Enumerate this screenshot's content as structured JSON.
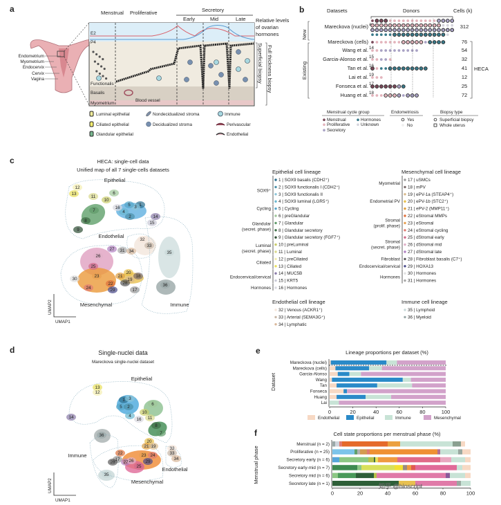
{
  "panel_a": {
    "label": "a",
    "phases": {
      "menstrual": "Menstrual",
      "proliferative": "Proliferative",
      "secretory": "Secretory",
      "early": "Early",
      "mid": "Mid",
      "late": "Late"
    },
    "hormones": {
      "e2": "E2",
      "p4": "P4",
      "caption": [
        "Relative levels",
        "of ovarian",
        "hormones"
      ],
      "e2_color": "#d9606a",
      "p4_color": "#5a9ad0"
    },
    "anatomy": [
      "Endometrium",
      "Myometrium",
      "Endocervix",
      "Cervix",
      "Vagina"
    ],
    "layers": [
      "Functionalis",
      "Basalis",
      "Myometrium"
    ],
    "blood_vessel": "Blood vessel",
    "biopsy": {
      "superficial": "Superficial biopsy",
      "full": "Full thickness biopsy"
    },
    "legend": [
      {
        "label": "Luminal epithelial",
        "icon": "luminal-cell-icon",
        "color": "#f0ec9a"
      },
      {
        "label": "Ciliated epithelial",
        "icon": "ciliated-cell-icon",
        "color": "#f5ee70"
      },
      {
        "label": "Glandular epithelial",
        "icon": "glandular-cell-icon",
        "color": "#7ab890"
      },
      {
        "label": "Nondecidualized stroma",
        "icon": "spindle-cell-icon",
        "color": "#8090a8"
      },
      {
        "label": "Decidualized stroma",
        "icon": "round-cell-icon",
        "color": "#7890b0"
      },
      {
        "label": "Immune",
        "icon": "immune-cell-icon",
        "color": "#a8d8e0"
      },
      {
        "label": "Perivascular",
        "icon": "perivascular-cell-icon",
        "color": "#a05060"
      },
      {
        "label": "Endothelial",
        "icon": "endothelial-cell-icon",
        "color": "#e8c0c8"
      }
    ]
  },
  "panel_b": {
    "label": "b",
    "headers": {
      "datasets": "Datasets",
      "donors": "Donors",
      "cells": "Cells (k)"
    },
    "groups": {
      "new": "New",
      "existing": "Existing"
    },
    "heca": "HECA",
    "datasets": [
      {
        "name": "Mareckova (nuclei)",
        "ref": "a",
        "cells": "312",
        "dots": [
          "mMMMpppppppppppSSSS",
          "PPPPPPPPPPPPPPPPuuu",
          "SSSSSSSSSSSSSSSSSSS",
          "hhhhhHHHHHHHHHHHHu"
        ]
      },
      {
        "name": "Mareckova (cells)",
        "ref": "",
        "cells": "76",
        "dots": [
          "mppppppPPPPPsHHHH"
        ]
      },
      {
        "name": "Wang et al.",
        "ref": "14",
        "cells": "54",
        "dots": [
          "ppsssssssss"
        ]
      },
      {
        "name": "Garcia-Alonso et al.",
        "ref": "15",
        "cells": "32",
        "dots": [
          "ppssp"
        ]
      },
      {
        "name": "Tan et al.",
        "ref": "16",
        "cells": "41",
        "dots": [
          "MphhHHHHHHHHH"
        ]
      },
      {
        "name": "Lai et al.",
        "ref": "19",
        "cells": "12",
        "dots": [
          "ppp"
        ]
      },
      {
        "name": "Fonseca et al.",
        "ref": "17",
        "cells": "25",
        "dots": [
          "MMMMMMSH"
        ]
      },
      {
        "name": "Huang et al.",
        "ref": "18",
        "cells": "72",
        "dots": [
          "pppPPPSsSSS"
        ]
      }
    ],
    "colors": {
      "m": "#7a4a5a",
      "p": "#e3b4bc",
      "s": "#a9a2c4",
      "h": "#3a7a8a",
      "u": "#d4d4dc"
    },
    "legend": {
      "cycle_title": "Menstrual cycle group",
      "cycle": [
        {
          "label": "Menstrual",
          "key": "m"
        },
        {
          "label": "Proliferative",
          "key": "p"
        },
        {
          "label": "Secretory",
          "key": "s"
        },
        {
          "label": "Hormones",
          "key": "h"
        },
        {
          "label": "Unknown",
          "key": "u"
        }
      ],
      "endo_title": "Endometriosis",
      "endo": [
        "Yes",
        "No"
      ],
      "biopsy_title": "Biopsy type",
      "biopsy": [
        "Superficial biopsy",
        "Whole uterus"
      ]
    }
  },
  "panel_c": {
    "label": "c",
    "title": "HECA: single-cell data",
    "subtitle": "Unified map of all 7 single-cells datasets",
    "lineages": {
      "epithelial": "Epithelial",
      "endothelial": "Endothelial",
      "mesenchymal": "Mesenchymal",
      "immune": "Immune"
    },
    "lineage_colors": {
      "epithelial": "#3aa0d8",
      "endothelial": "#dcae88",
      "mesenchymal": "#cf98c8",
      "immune": "#9a9a9a"
    },
    "axes": {
      "x": "UMAP1",
      "y": "UMAP2"
    },
    "cluster_labels": [
      "1",
      "2",
      "3",
      "4",
      "5",
      "6",
      "7",
      "8",
      "9",
      "10",
      "11",
      "12",
      "13",
      "14",
      "15",
      "16",
      "17",
      "18",
      "19",
      "20",
      "21",
      "22",
      "23",
      "24",
      "25",
      "26",
      "27",
      "28",
      "29",
      "30",
      "31",
      "32",
      "33",
      "34",
      "35",
      "36"
    ],
    "legend": {
      "epithelial": {
        "title": "Epithelial cell lineage",
        "groups": [
          {
            "label": [
              "SOX9⁺"
            ],
            "items": [
              {
                "id": "1",
                "name": "SOX9 basalis (CDH2⁺)",
                "color": "#2b6f8f"
              },
              {
                "id": "2",
                "name": "SOX9 functionalis I (CDH2⁺)",
                "color": "#4a90a8"
              },
              {
                "id": "3",
                "name": "SOX9 functionalis II",
                "color": "#8cc5d8"
              },
              {
                "id": "4",
                "name": "SOX9 luminal (LGR5⁺)",
                "color": "#6ab8d0"
              }
            ]
          },
          {
            "label": [
              "Cycling"
            ],
            "items": [
              {
                "id": "5",
                "name": "Cycling",
                "color": "#56a6c9"
              }
            ]
          },
          {
            "label": [
              "Glandular",
              "(secret. phase)"
            ],
            "items": [
              {
                "id": "6",
                "name": "preGlandular",
                "color": "#9fc79a"
              },
              {
                "id": "7",
                "name": "Glandular",
                "color": "#5f9a6a"
              },
              {
                "id": "8",
                "name": "Glandular secretory",
                "color": "#3d6e45"
              },
              {
                "id": "9",
                "name": "Glandular secretory (FGF7⁺)",
                "color": "#2e4f34"
              }
            ]
          },
          {
            "label": [
              "Luminal",
              "(secret. phase)"
            ],
            "items": [
              {
                "id": "10",
                "name": "preLuminal",
                "color": "#c9cc6a"
              },
              {
                "id": "11",
                "name": "Luminal",
                "color": "#d9d98c"
              }
            ]
          },
          {
            "label": [
              "Ciliated"
            ],
            "items": [
              {
                "id": "12",
                "name": "preCiliated",
                "color": "#f3eeb0"
              },
              {
                "id": "13",
                "name": "Ciliated",
                "color": "#e8df5a"
              }
            ]
          },
          {
            "label": [
              "Endocervical/cervical"
            ],
            "items": [
              {
                "id": "14",
                "name": "MUC5B",
                "color": "#8a7aa8"
              },
              {
                "id": "15",
                "name": "KRT5",
                "color": "#c9c9d6"
              }
            ]
          },
          {
            "label": [
              "Hormones"
            ],
            "items": [
              {
                "id": "16",
                "name": "Hormones",
                "color": "#d8d8e0"
              }
            ]
          }
        ]
      },
      "mesenchymal": {
        "title": "Mesenchymal cell lineage",
        "groups": [
          {
            "label": [
              "Myometrial"
            ],
            "items": [
              {
                "id": "17",
                "name": "uSMCs",
                "color": "#9a9a9a"
              },
              {
                "id": "18",
                "name": "mPV",
                "color": "#7a6a6a"
              }
            ]
          },
          {
            "label": [
              "Endometrial PV"
            ],
            "items": [
              {
                "id": "19",
                "name": "ePV-1a (STEAP4⁺)",
                "color": "#d9b98a"
              },
              {
                "id": "20",
                "name": "ePV-1b (STC2⁺)",
                "color": "#e8c04a"
              },
              {
                "id": "21",
                "name": "ePV-2 (MMP11⁺)",
                "color": "#e0a040"
              }
            ]
          },
          {
            "label": [
              "Stromal",
              "(prolif. phase)"
            ],
            "items": [
              {
                "id": "22",
                "name": "eStromal MMPs",
                "color": "#e0703a"
              },
              {
                "id": "23",
                "name": "eStromal",
                "color": "#e8a050"
              },
              {
                "id": "24",
                "name": "eStromal cycling",
                "color": "#e07a70"
              }
            ]
          },
          {
            "label": [
              "Stromal",
              "(secret. phase)"
            ],
            "items": [
              {
                "id": "25",
                "name": "dStromal early",
                "color": "#d06a8a"
              },
              {
                "id": "26",
                "name": "dStromal mid",
                "color": "#e0b0c8"
              },
              {
                "id": "27",
                "name": "dStromal late",
                "color": "#b080c0"
              }
            ]
          },
          {
            "label": [
              "Fibroblast"
            ],
            "items": [
              {
                "id": "28",
                "name": "Fibroblast basalis (C7⁺)",
                "color": "#5a5a5a"
              }
            ]
          },
          {
            "label": [
              "Endocervical/cervical"
            ],
            "items": [
              {
                "id": "29",
                "name": "HOXA13",
                "color": "#4a4a8a"
              }
            ]
          },
          {
            "label": [
              "Hormones"
            ],
            "items": [
              {
                "id": "30",
                "name": "Hormones",
                "color": "#e0e0e0"
              },
              {
                "id": "31",
                "name": "Hormones",
                "color": "#a8a8a8"
              }
            ]
          }
        ]
      },
      "endothelial": {
        "title": "Endothelial cell lineage",
        "groups": [
          {
            "label": [],
            "items": [
              {
                "id": "32",
                "name": "Venous (ACKR1⁺)",
                "color": "#f5e6da"
              },
              {
                "id": "33",
                "name": "Arterial (SEMA3G⁺)",
                "color": "#c8b8a8"
              },
              {
                "id": "34",
                "name": "Lymphatic",
                "color": "#d9b89a"
              }
            ]
          }
        ]
      },
      "immune": {
        "title": "Immune cell lineage",
        "groups": [
          {
            "label": [],
            "items": [
              {
                "id": "35",
                "name": "Lymphoid",
                "color": "#c8d8d8"
              },
              {
                "id": "36",
                "name": "Myeloid",
                "color": "#9aa8a8"
              }
            ]
          }
        ]
      }
    }
  },
  "panel_d": {
    "label": "d",
    "title": "Single-nuclei data",
    "subtitle": "Mareckova single-nuclei dataset",
    "lineages": {
      "epithelial": "Epithelial",
      "endothelial": "Endothelial",
      "mesenchymal": "Mesenchymal",
      "immune": "Immune"
    },
    "axes": {
      "x": "UMAP1",
      "y": "UMAP2"
    },
    "cluster_labels": [
      "13",
      "12",
      "14",
      "1",
      "3",
      "5",
      "2",
      "6",
      "10",
      "4",
      "11",
      "16",
      "8",
      "7",
      "36",
      "20",
      "21",
      "19",
      "32",
      "33",
      "34",
      "22",
      "23",
      "24",
      "17",
      "28",
      "27",
      "26",
      "29",
      "25",
      "35"
    ]
  },
  "chart_data": [
    {
      "panel": "e",
      "type": "bar",
      "orientation": "horizontal",
      "stacked": true,
      "title": "Lineage proportions per dataset (%)",
      "xlabel": "",
      "ylabel": "Dataset",
      "xlim": [
        0,
        100
      ],
      "xticks": [
        "0",
        "20",
        "40",
        "60",
        "80",
        "100"
      ],
      "categories": [
        "Mareckova (nuclei)",
        "Mareckova (cells)",
        "Garcia-Alonso",
        "Wang",
        "Tan",
        "Fonseca",
        "Huang",
        "Lai"
      ],
      "series": [
        {
          "name": "Endothelial",
          "color": "#f7d9c4",
          "values": [
            1,
            5,
            7,
            2,
            6,
            12,
            6,
            0
          ]
        },
        {
          "name": "Epithelial",
          "color": "#2a8ac8",
          "values": [
            48,
            29,
            10,
            61,
            35,
            3,
            25,
            0
          ]
        },
        {
          "name": "Immune",
          "color": "#c8e3d6",
          "values": [
            9,
            11,
            10,
            7,
            30,
            0,
            22,
            8
          ]
        },
        {
          "name": "Mesenchymal",
          "color": "#d2a2ca",
          "values": [
            42,
            55,
            73,
            30,
            29,
            85,
            47,
            92
          ]
        }
      ],
      "legend": "bottom"
    },
    {
      "panel": "f",
      "type": "bar",
      "orientation": "horizontal",
      "stacked": true,
      "title": "Cell state proportions per menstrual phase (%)",
      "xlabel": "",
      "ylabel": "Menstrual phase",
      "xlim": [
        0,
        100
      ],
      "xticks": [
        "0",
        "20",
        "40",
        "60",
        "80",
        "100"
      ],
      "categories": [
        "Menstrual (n = 2)",
        "Proliferative (n = 25)",
        "Secretory early (n = 6)",
        "Secretory early-mid (n = 7)",
        "Secretory mid (n = 6)",
        "Secretory late (n = 1)"
      ],
      "rows": [
        [
          [
            2,
            "#9aa8a8"
          ],
          [
            3,
            "#d0d4dc"
          ],
          [
            2,
            "#e07a70"
          ],
          [
            33,
            "#e56a2a"
          ],
          [
            9,
            "#eba040"
          ],
          [
            38,
            "#c8e3d6"
          ],
          [
            6,
            "#8aa090"
          ],
          [
            3,
            "#f7d9c4"
          ]
        ],
        [
          [
            16,
            "#7cc4ea"
          ],
          [
            2,
            "#5fa06a"
          ],
          [
            2,
            "#b0b0b0"
          ],
          [
            5,
            "#d49a50"
          ],
          [
            2,
            "#e07a70"
          ],
          [
            49,
            "#ef9033"
          ],
          [
            2,
            "#b07090"
          ],
          [
            13,
            "#c8e3d6"
          ],
          [
            3,
            "#9aa8a0"
          ],
          [
            6,
            "#f7d9c4"
          ]
        ],
        [
          [
            5,
            "#56a6d9"
          ],
          [
            21,
            "#8cc784"
          ],
          [
            4,
            "#b8c04a"
          ],
          [
            1,
            "#3d6e45"
          ],
          [
            2,
            "#e8df5a"
          ],
          [
            14,
            "#ef9a40"
          ],
          [
            31,
            "#e06a88"
          ],
          [
            8,
            "#e8a8c0"
          ],
          [
            10,
            "#c8e3d6"
          ],
          [
            4,
            "#f7d9c4"
          ]
        ],
        [
          [
            18,
            "#3d8a50"
          ],
          [
            3,
            "#8cc784"
          ],
          [
            24,
            "#d8e05a"
          ],
          [
            6,
            "#f3e030"
          ],
          [
            3,
            "#9a8a80"
          ],
          [
            3,
            "#ef9a40"
          ],
          [
            3,
            "#e05a50"
          ],
          [
            30,
            "#e06a98"
          ],
          [
            4,
            "#c8e3d6"
          ],
          [
            6,
            "#f7d9c4"
          ]
        ],
        [
          [
            4,
            "#8cc784"
          ],
          [
            13,
            "#4a9a5a"
          ],
          [
            13,
            "#2e5f38"
          ],
          [
            2,
            "#b8c04a"
          ],
          [
            50,
            "#e07aa8"
          ],
          [
            3,
            "#8a5a9a"
          ],
          [
            11,
            "#c8e3d6"
          ],
          [
            4,
            "#f7d9c4"
          ]
        ],
        [
          [
            48,
            "#2e5f38"
          ],
          [
            12,
            "#e8c050"
          ],
          [
            30,
            "#e07aa8"
          ],
          [
            3,
            "#9aa8a0"
          ],
          [
            7,
            "#c8e3d6"
          ]
        ]
      ]
    }
  ],
  "watermark": "知乎 @bioscript"
}
